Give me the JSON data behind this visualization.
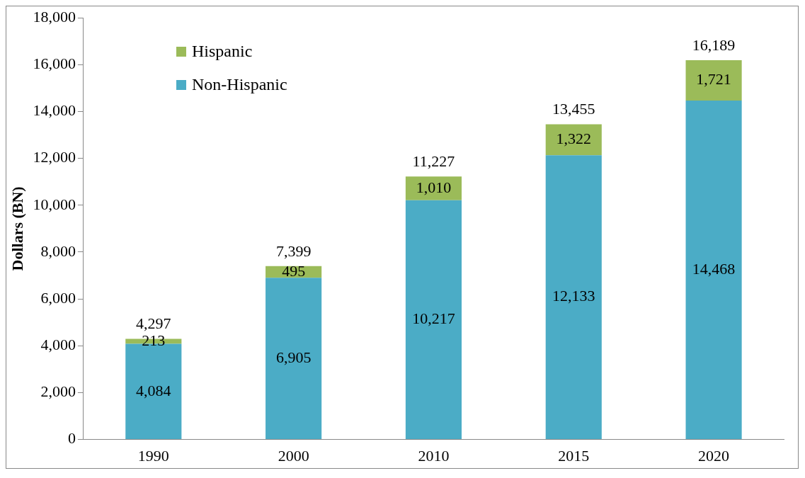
{
  "chart_data": {
    "type": "bar",
    "ylabel": "Dollars (BN)",
    "categories": [
      "1990",
      "2000",
      "2010",
      "2015",
      "2020"
    ],
    "stacked": true,
    "series": [
      {
        "name": "Non-Hispanic",
        "color": "#4bacc6",
        "values": [
          4084,
          6905,
          10217,
          12133,
          14468
        ],
        "value_labels": [
          "4,084",
          "6,905",
          "10,217",
          "12,133",
          "14,468"
        ]
      },
      {
        "name": "Hispanic",
        "color": "#9bbb59",
        "values": [
          213,
          495,
          1010,
          1322,
          1721
        ],
        "value_labels": [
          "213",
          "495",
          "1,010",
          "1,322",
          "1,721"
        ]
      }
    ],
    "totals": [
      "4,297",
      "7,399",
      "11,227",
      "13,455",
      "16,189"
    ],
    "ylim": [
      0,
      18000
    ],
    "yticks": [
      0,
      {
        "value": 2000,
        "label": "2,000"
      },
      {
        "value": 4000,
        "label": "4,000"
      },
      {
        "value": 6000,
        "label": "6,000"
      },
      {
        "value": 8000,
        "label": "8,000"
      },
      {
        "value": 10000,
        "label": "10,000"
      },
      {
        "value": 12000,
        "label": "12,000"
      },
      {
        "value": 14000,
        "label": "14,000"
      },
      {
        "value": 16000,
        "label": "16,000"
      },
      {
        "value": 18000,
        "label": "18,000"
      }
    ],
    "grid": false,
    "legend": "top left"
  }
}
